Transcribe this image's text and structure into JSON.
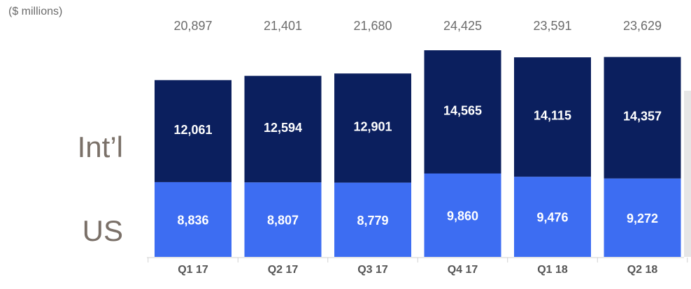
{
  "unit_label": "($ millions)",
  "colors": {
    "intl": "#0b1f5e",
    "us": "#3d6df2",
    "segment_label": "#ffffff",
    "total_label": "#6b6b6b",
    "axis_label": "#555555",
    "series_label": "#7a7068",
    "axis_line": "#d0d0d0",
    "right_edge": "#e6e6e6"
  },
  "chart_data": {
    "type": "bar",
    "stacked": true,
    "categories": [
      "Q1 17",
      "Q2 17",
      "Q3 17",
      "Q4 17",
      "Q1 18",
      "Q2 18"
    ],
    "series": [
      {
        "name": "US",
        "values": [
          8836,
          8807,
          8779,
          9860,
          9476,
          9272
        ],
        "value_labels": [
          "8,836",
          "8,807",
          "8,779",
          "9,860",
          "9,476",
          "9,272"
        ]
      },
      {
        "name": "Int’l",
        "values": [
          12061,
          12594,
          12901,
          14565,
          14115,
          14357
        ],
        "value_labels": [
          "12,061",
          "12,594",
          "12,901",
          "14,565",
          "14,115",
          "14,357"
        ]
      }
    ],
    "totals": [
      20897,
      21401,
      21680,
      24425,
      23591,
      23629
    ],
    "total_labels": [
      "20,897",
      "21,401",
      "21,680",
      "24,425",
      "23,591",
      "23,629"
    ],
    "title": "",
    "xlabel": "",
    "ylabel": "",
    "ylim": [
      0,
      25000
    ],
    "grid": false,
    "legend": "left-side labels"
  }
}
